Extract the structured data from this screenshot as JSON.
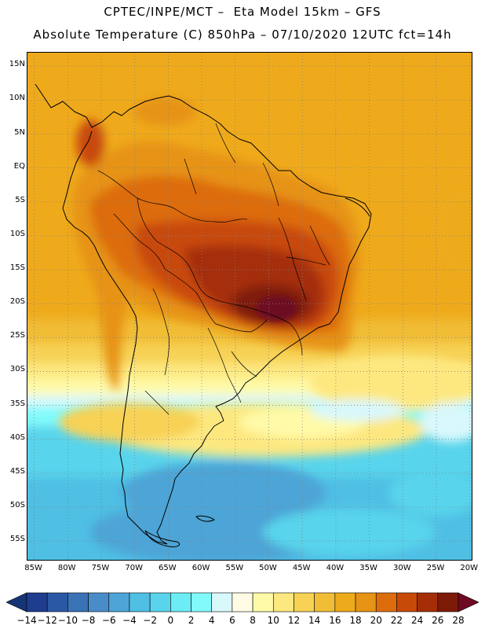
{
  "header": {
    "line1": "CPTEC/INPE/MCT –  Eta Model 15km – GFS",
    "line2": "Absolute Temperature (C) 850hPa – 07/10/2020 12UTC fct=14h"
  },
  "map": {
    "lat_range": [
      -58,
      17
    ],
    "lon_range": [
      -86,
      -19.5
    ],
    "lat_ticks": [
      {
        "value": 15,
        "label": "15N"
      },
      {
        "value": 10,
        "label": "10N"
      },
      {
        "value": 5,
        "label": "5N"
      },
      {
        "value": 0,
        "label": "EQ"
      },
      {
        "value": -5,
        "label": "5S"
      },
      {
        "value": -10,
        "label": "10S"
      },
      {
        "value": -15,
        "label": "15S"
      },
      {
        "value": -20,
        "label": "20S"
      },
      {
        "value": -25,
        "label": "25S"
      },
      {
        "value": -30,
        "label": "30S"
      },
      {
        "value": -35,
        "label": "35S"
      },
      {
        "value": -40,
        "label": "40S"
      },
      {
        "value": -45,
        "label": "45S"
      },
      {
        "value": -50,
        "label": "50S"
      },
      {
        "value": -55,
        "label": "55S"
      }
    ],
    "lon_ticks": [
      {
        "value": -85,
        "label": "85W"
      },
      {
        "value": -80,
        "label": "80W"
      },
      {
        "value": -75,
        "label": "75W"
      },
      {
        "value": -70,
        "label": "70W"
      },
      {
        "value": -65,
        "label": "65W"
      },
      {
        "value": -60,
        "label": "60W"
      },
      {
        "value": -55,
        "label": "55W"
      },
      {
        "value": -50,
        "label": "50W"
      },
      {
        "value": -45,
        "label": "45W"
      },
      {
        "value": -40,
        "label": "40W"
      },
      {
        "value": -35,
        "label": "35W"
      },
      {
        "value": -30,
        "label": "30W"
      },
      {
        "value": -25,
        "label": "25W"
      },
      {
        "value": -20,
        "label": "20W"
      }
    ],
    "gridlines": true
  },
  "colorbar": {
    "labels": [
      "-14",
      "-12",
      "-10",
      "-8",
      "-6",
      "-4",
      "-2",
      "0",
      "2",
      "4",
      "6",
      "8",
      "10",
      "12",
      "14",
      "16",
      "18",
      "20",
      "22",
      "24",
      "26",
      "28"
    ],
    "colors": [
      "#1f3d8e",
      "#2a58a4",
      "#3a72b6",
      "#4a8cc8",
      "#4ea4d6",
      "#4fbfe4",
      "#59d4ec",
      "#6cecf4",
      "#82fafc",
      "#d8f8fc",
      "#fffbe4",
      "#fffaa8",
      "#fde880",
      "#f7d254",
      "#f1bd36",
      "#edab1c",
      "#e69316",
      "#dd6c0c",
      "#c84a08",
      "#a52e08",
      "#7e1a08"
    ],
    "low_end_color": "#163575",
    "high_end_color": "#6e0a24"
  }
}
